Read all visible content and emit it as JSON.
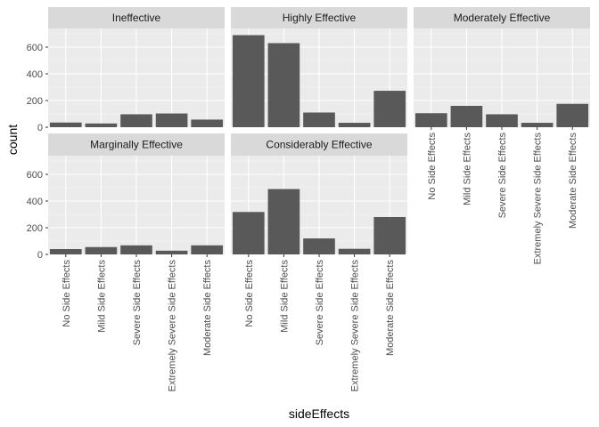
{
  "chart_data": {
    "type": "bar",
    "facet_layout": "3 columns x 2 rows",
    "xlabel": "sideEffects",
    "ylabel": "count",
    "ylim": [
      0,
      740
    ],
    "y_ticks": [
      0,
      200,
      400,
      600
    ],
    "categories": [
      "No Side Effects",
      "Mild Side Effects",
      "Severe Side Effects",
      "Extremely Severe Side Effects",
      "Moderate Side Effects"
    ],
    "panels": [
      {
        "name": "Ineffective",
        "values": [
          35,
          28,
          97,
          103,
          57
        ]
      },
      {
        "name": "Highly Effective",
        "values": [
          690,
          630,
          110,
          33,
          273
        ]
      },
      {
        "name": "Moderately Effective",
        "values": [
          105,
          160,
          97,
          33,
          175
        ]
      },
      {
        "name": "Marginally Effective",
        "values": [
          40,
          55,
          68,
          28,
          68
        ]
      },
      {
        "name": "Considerably Effective",
        "values": [
          318,
          490,
          120,
          42,
          280
        ]
      }
    ],
    "colors": {
      "bar": "#595959",
      "panel_background": "#ebebeb",
      "strip_background": "#d9d9d9",
      "grid_major": "#ffffff",
      "grid_minor": "#f5f5f5"
    },
    "grid": true,
    "legend": "none"
  }
}
